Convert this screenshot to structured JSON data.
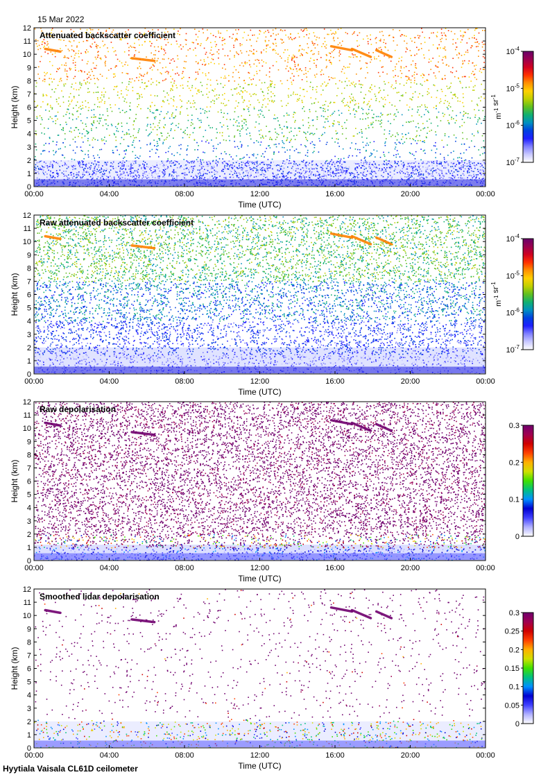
{
  "date": "15 Mar 2022",
  "footer": "Hyytiala Vaisala CL61D ceilometer",
  "chart_data": [
    {
      "type": "heatmap",
      "title": "Attenuated backscatter coefficient",
      "xlabel": "Time (UTC)",
      "ylabel": "Height (km)",
      "xticks": [
        "00:00",
        "04:00",
        "08:00",
        "12:00",
        "16:00",
        "20:00",
        "00:00"
      ],
      "xlim_hours": [
        0,
        24
      ],
      "ylim": [
        0,
        12
      ],
      "yticks": [
        0,
        1,
        2,
        3,
        4,
        5,
        6,
        7,
        8,
        9,
        10,
        11,
        12
      ],
      "colorbar": {
        "scale": "log",
        "min": 1e-07,
        "max": 0.0001,
        "unit": "m-1 sr-1",
        "ticks": [
          "10-4",
          "10-5",
          "10-6",
          "10-7"
        ]
      },
      "features": [
        {
          "kind": "boundary_layer",
          "value": 0.4
        },
        {
          "kind": "noise_layer",
          "value": 2.0
        },
        {
          "kind": "cloud",
          "x_start": 15.8,
          "x_end": 19.0,
          "y": 10.2
        }
      ]
    },
    {
      "type": "heatmap",
      "title": "Raw attenuated backscatter coefficient",
      "xlabel": "Time (UTC)",
      "ylabel": "Height (km)",
      "xticks": [
        "00:00",
        "04:00",
        "08:00",
        "12:00",
        "16:00",
        "20:00",
        "00:00"
      ],
      "xlim_hours": [
        0,
        24
      ],
      "ylim": [
        0,
        12
      ],
      "yticks": [
        0,
        1,
        2,
        3,
        4,
        5,
        6,
        7,
        8,
        9,
        10,
        11,
        12
      ],
      "colorbar": {
        "scale": "log",
        "min": 1e-07,
        "max": 0.0001,
        "unit": "m-1 sr-1",
        "ticks": [
          "10-4",
          "10-5",
          "10-6",
          "10-7"
        ]
      },
      "features": [
        {
          "kind": "boundary_layer",
          "value": 0.4
        },
        {
          "kind": "cloud",
          "x_start": 15.8,
          "x_end": 19.0,
          "y": 10.2
        }
      ]
    },
    {
      "type": "heatmap",
      "title": "Raw depolarisation",
      "xlabel": "Time (UTC)",
      "ylabel": "Height (km)",
      "xticks": [
        "00:00",
        "04:00",
        "08:00",
        "12:00",
        "16:00",
        "20:00",
        "00:00"
      ],
      "xlim_hours": [
        0,
        24
      ],
      "ylim": [
        0,
        12
      ],
      "yticks": [
        0,
        1,
        2,
        3,
        4,
        5,
        6,
        7,
        8,
        9,
        10,
        11,
        12
      ],
      "colorbar": {
        "scale": "linear",
        "min": 0,
        "max": 0.3,
        "ticks": [
          "0.3",
          "0.2",
          "0.1",
          "0"
        ]
      },
      "features": [
        {
          "kind": "boundary_layer",
          "value": 0.4
        },
        {
          "kind": "cloud",
          "x_start": 15.8,
          "x_end": 19.0,
          "y": 10.2
        }
      ]
    },
    {
      "type": "heatmap",
      "title": "Smoothed lidar depolarisation",
      "xlabel": "Time (UTC)",
      "ylabel": "Height (km)",
      "xticks": [
        "00:00",
        "04:00",
        "08:00",
        "12:00",
        "16:00",
        "20:00",
        "00:00"
      ],
      "xlim_hours": [
        0,
        24
      ],
      "ylim": [
        0,
        12
      ],
      "yticks": [
        0,
        1,
        2,
        3,
        4,
        5,
        6,
        7,
        8,
        9,
        10,
        11,
        12
      ],
      "colorbar": {
        "scale": "linear",
        "min": 0,
        "max": 0.3,
        "ticks": [
          "0.3",
          "0.25",
          "0.2",
          "0.15",
          "0.1",
          "0.05",
          "0"
        ]
      },
      "features": [
        {
          "kind": "boundary_layer",
          "value": 0.4
        },
        {
          "kind": "noise_layer",
          "value": 2.0
        },
        {
          "kind": "cloud",
          "x_start": 15.8,
          "x_end": 19.0,
          "y": 10.2
        }
      ]
    }
  ]
}
